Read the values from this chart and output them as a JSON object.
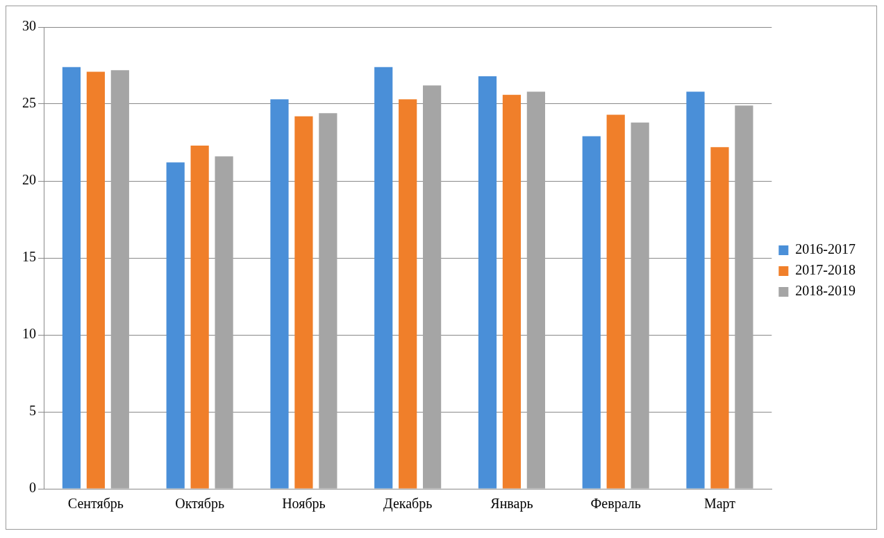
{
  "chart_data": {
    "type": "bar",
    "categories": [
      "Сентябрь",
      "Октябрь",
      "Ноябрь",
      "Декабрь",
      "Январь",
      "Февраль",
      "Март"
    ],
    "series": [
      {
        "name": "2016-2017",
        "color": "#4a8fd8",
        "values": [
          27.4,
          21.2,
          25.3,
          27.4,
          26.8,
          22.9,
          25.8
        ]
      },
      {
        "name": "2017-2018",
        "color": "#f07f2a",
        "values": [
          27.1,
          22.3,
          24.2,
          25.3,
          25.6,
          24.3,
          22.2
        ]
      },
      {
        "name": "2018-2019",
        "color": "#a5a5a5",
        "values": [
          27.2,
          21.6,
          24.4,
          26.2,
          25.8,
          23.8,
          24.9
        ]
      }
    ],
    "ylim": [
      0,
      30
    ],
    "yticks": [
      0,
      5,
      10,
      15,
      20,
      25,
      30
    ],
    "grid": "y",
    "legend": "right"
  }
}
